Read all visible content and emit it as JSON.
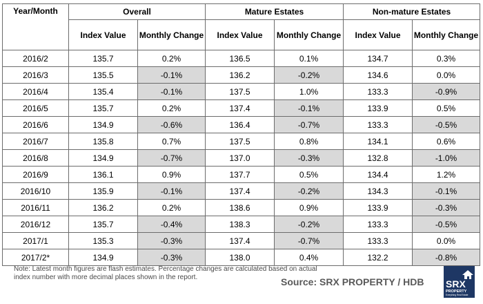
{
  "headers": {
    "year_month": "Year/Month",
    "overall": "Overall",
    "mature": "Mature Estates",
    "nonmature": "Non-mature Estates",
    "index_value": "Index Value",
    "monthly_change": "Monthly Change"
  },
  "rows": [
    {
      "period": "2016/2",
      "o_idx": "135.7",
      "o_chg": "0.2%",
      "m_idx": "136.5",
      "m_chg": "0.1%",
      "n_idx": "134.7",
      "n_chg": "0.3%"
    },
    {
      "period": "2016/3",
      "o_idx": "135.5",
      "o_chg": "-0.1%",
      "m_idx": "136.2",
      "m_chg": "-0.2%",
      "n_idx": "134.6",
      "n_chg": "0.0%"
    },
    {
      "period": "2016/4",
      "o_idx": "135.4",
      "o_chg": "-0.1%",
      "m_idx": "137.5",
      "m_chg": "1.0%",
      "n_idx": "133.3",
      "n_chg": "-0.9%"
    },
    {
      "period": "2016/5",
      "o_idx": "135.7",
      "o_chg": "0.2%",
      "m_idx": "137.4",
      "m_chg": "-0.1%",
      "n_idx": "133.9",
      "n_chg": "0.5%"
    },
    {
      "period": "2016/6",
      "o_idx": "134.9",
      "o_chg": "-0.6%",
      "m_idx": "136.4",
      "m_chg": "-0.7%",
      "n_idx": "133.3",
      "n_chg": "-0.5%"
    },
    {
      "period": "2016/7",
      "o_idx": "135.8",
      "o_chg": "0.7%",
      "m_idx": "137.5",
      "m_chg": "0.8%",
      "n_idx": "134.1",
      "n_chg": "0.6%"
    },
    {
      "period": "2016/8",
      "o_idx": "134.9",
      "o_chg": "-0.7%",
      "m_idx": "137.0",
      "m_chg": "-0.3%",
      "n_idx": "132.8",
      "n_chg": "-1.0%"
    },
    {
      "period": "2016/9",
      "o_idx": "136.1",
      "o_chg": "0.9%",
      "m_idx": "137.7",
      "m_chg": "0.5%",
      "n_idx": "134.4",
      "n_chg": "1.2%"
    },
    {
      "period": "2016/10",
      "o_idx": "135.9",
      "o_chg": "-0.1%",
      "m_idx": "137.4",
      "m_chg": "-0.2%",
      "n_idx": "134.3",
      "n_chg": "-0.1%"
    },
    {
      "period": "2016/11",
      "o_idx": "136.2",
      "o_chg": "0.2%",
      "m_idx": "138.6",
      "m_chg": "0.9%",
      "n_idx": "133.9",
      "n_chg": "-0.3%"
    },
    {
      "period": "2016/12",
      "o_idx": "135.7",
      "o_chg": "-0.4%",
      "m_idx": "138.3",
      "m_chg": "-0.2%",
      "n_idx": "133.3",
      "n_chg": "-0.5%"
    },
    {
      "period": "2017/1",
      "o_idx": "135.3",
      "o_chg": "-0.3%",
      "m_idx": "137.4",
      "m_chg": "-0.7%",
      "n_idx": "133.3",
      "n_chg": "0.0%"
    },
    {
      "period": "2017/2*",
      "o_idx": "134.9",
      "o_chg": "-0.3%",
      "m_idx": "138.0",
      "m_chg": "0.4%",
      "n_idx": "132.2",
      "n_chg": "-0.8%"
    }
  ],
  "note": "Note: Latest month figures are flash estimates. Percentage changes are calculated based on actual index number with more decimal places shown in the report.",
  "source": "Source:  SRX PROPERTY / HDB",
  "logo": {
    "text": "SRX",
    "sub": "PROPERTY",
    "tagline": "Everything Real Estate",
    "icon": "house-icon",
    "bg_color": "#1e3764"
  },
  "colors": {
    "negative_fill": "#d9d9d9",
    "border": "#6b6b6b"
  }
}
